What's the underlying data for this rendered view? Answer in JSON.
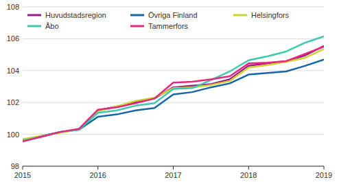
{
  "chart_data": {
    "type": "line",
    "x": [
      2015,
      2015.25,
      2015.5,
      2015.75,
      2016,
      2016.25,
      2016.5,
      2016.75,
      2017,
      2017.25,
      2017.5,
      2017.75,
      2018,
      2018.25,
      2018.5,
      2018.75,
      2019
    ],
    "series": [
      {
        "name": "Huvudstadsregion",
        "color": "#9c1a8c",
        "values": [
          99.6,
          99.85,
          100.15,
          100.3,
          101.5,
          101.75,
          102.0,
          102.25,
          102.95,
          103.05,
          103.15,
          103.45,
          104.3,
          104.45,
          104.6,
          104.95,
          105.55
        ]
      },
      {
        "name": "Övriga Finland",
        "color": "#1565a8",
        "values": [
          99.6,
          99.9,
          100.15,
          100.3,
          101.1,
          101.25,
          101.5,
          101.65,
          102.5,
          102.65,
          102.95,
          103.2,
          103.75,
          103.85,
          103.95,
          104.3,
          104.7
        ]
      },
      {
        "name": "Helsingfors",
        "color": "#c9d42c",
        "values": [
          99.7,
          99.9,
          100.1,
          100.3,
          101.45,
          101.75,
          102.1,
          102.3,
          102.9,
          102.95,
          103.1,
          103.35,
          104.2,
          104.35,
          104.55,
          104.8,
          105.35
        ]
      },
      {
        "name": "Åbo",
        "color": "#3cc9b0",
        "values": [
          99.6,
          99.85,
          100.15,
          100.3,
          101.35,
          101.5,
          101.8,
          101.95,
          102.85,
          102.9,
          103.4,
          103.95,
          104.65,
          104.9,
          105.2,
          105.75,
          106.15
        ]
      },
      {
        "name": "Tammerfors",
        "color": "#e6287d",
        "values": [
          99.55,
          99.85,
          100.15,
          100.35,
          101.55,
          101.7,
          101.95,
          102.25,
          103.25,
          103.3,
          103.45,
          103.65,
          104.45,
          104.5,
          104.6,
          105.05,
          105.5
        ]
      }
    ],
    "xlim": [
      2015,
      2019
    ],
    "xticks": [
      2015,
      2016,
      2017,
      2018,
      2019
    ],
    "ylim": [
      98,
      108
    ],
    "yticks": [
      98,
      100,
      102,
      104,
      106,
      108
    ],
    "grid": true,
    "legend": "top"
  }
}
